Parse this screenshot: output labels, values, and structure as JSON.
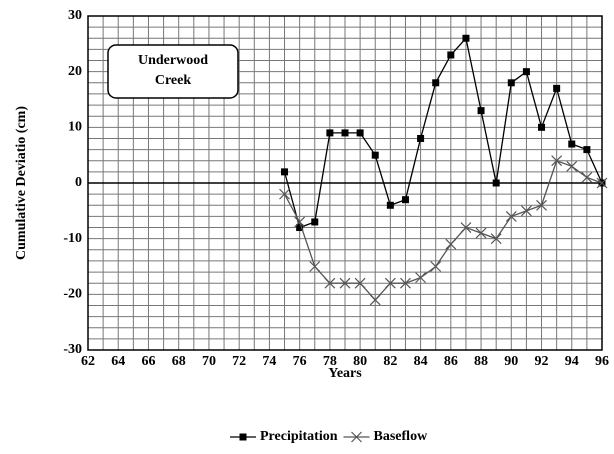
{
  "chart_data": {
    "type": "line",
    "xlabel": "Years",
    "ylabel": "Cumulative Deviatio (cm)",
    "annotation": [
      "Underwood",
      "Creek"
    ],
    "x": [
      75,
      76,
      77,
      78,
      79,
      80,
      81,
      82,
      83,
      84,
      85,
      86,
      87,
      88,
      89,
      90,
      91,
      92,
      93,
      94,
      95,
      96
    ],
    "series": [
      {
        "name": "Precipitation",
        "color": "#000000",
        "marker": "square",
        "values": [
          2,
          -8,
          -7,
          9,
          9,
          9,
          5,
          -4,
          -3,
          8,
          18,
          23,
          26,
          13,
          0,
          18,
          20,
          10,
          17,
          7,
          6,
          0
        ]
      },
      {
        "name": "Baseflow",
        "color": "#555555",
        "marker": "x",
        "values": [
          -2,
          -7,
          -15,
          -18,
          -18,
          -18,
          -21,
          -18,
          -18,
          -17,
          -15,
          -11,
          -8,
          -9,
          -10,
          -6,
          -5,
          -4,
          4,
          3,
          1,
          0
        ]
      }
    ],
    "xlim": [
      62,
      96
    ],
    "xticks": [
      62,
      64,
      66,
      68,
      70,
      72,
      74,
      76,
      78,
      80,
      82,
      84,
      86,
      88,
      90,
      92,
      94,
      96
    ],
    "ylim": [
      -30,
      30
    ],
    "yticks": [
      -30,
      -20,
      -10,
      0,
      10,
      20,
      30
    ],
    "grid": true,
    "legend": "bottom"
  }
}
